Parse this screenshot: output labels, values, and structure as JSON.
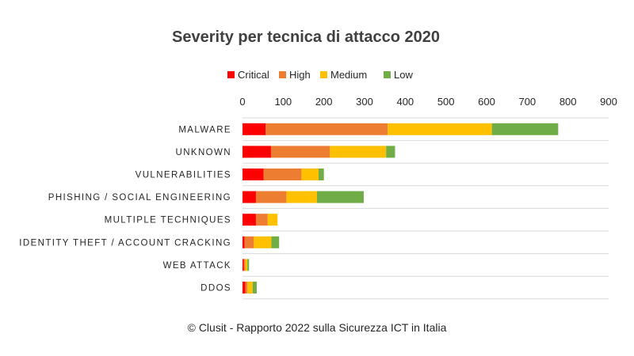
{
  "title": "Severity per tecnica di attacco 2020",
  "footer": "© Clusit - Rapporto 2022 sulla Sicurezza ICT in Italia",
  "colors": {
    "Critical": "#ff0000",
    "High": "#ed7d31",
    "Medium": "#ffc000",
    "Low": "#70ad47",
    "grid": "#d9d9d9"
  },
  "chart_data": {
    "type": "bar",
    "orientation": "horizontal",
    "stacked": true,
    "title": "Severity per tecnica di attacco 2020",
    "xlim": [
      0,
      900
    ],
    "xticks": [
      0,
      100,
      200,
      300,
      400,
      500,
      600,
      700,
      800,
      900
    ],
    "grid": "horizontal lines between categories",
    "legend_position": "top",
    "categories": [
      "MALWARE",
      "UNKNOWN",
      "VULNERABILITIES",
      "PHISHING / SOCIAL ENGINEERING",
      "MULTIPLE TECHNIQUES",
      "IDENTITY THEFT / ACCOUNT CRACKING",
      "WEB ATTACK",
      "DDOS"
    ],
    "series": [
      {
        "name": "Critical",
        "values": [
          57,
          70,
          52,
          33,
          33,
          5,
          3,
          7
        ]
      },
      {
        "name": "High",
        "values": [
          300,
          145,
          93,
          75,
          29,
          23,
          4,
          5
        ]
      },
      {
        "name": "Medium",
        "values": [
          256,
          138,
          42,
          75,
          24,
          43,
          5,
          13
        ]
      },
      {
        "name": "Low",
        "values": [
          163,
          22,
          13,
          115,
          0,
          19,
          4,
          10
        ]
      }
    ]
  }
}
